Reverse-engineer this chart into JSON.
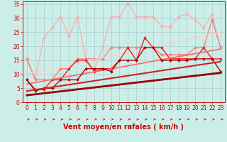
{
  "xlabel": "Vent moyen/en rafales ( km/h )",
  "bg_color": "#cceee8",
  "grid_color": "#aacccc",
  "xlim": [
    -0.5,
    23.5
  ],
  "ylim": [
    0,
    36
  ],
  "yticks": [
    0,
    5,
    10,
    15,
    20,
    25,
    30,
    35
  ],
  "xticks": [
    0,
    1,
    2,
    3,
    4,
    5,
    6,
    7,
    8,
    9,
    10,
    11,
    12,
    13,
    14,
    15,
    16,
    17,
    18,
    19,
    20,
    21,
    22,
    23
  ],
  "series": [
    {
      "x": [
        0,
        1,
        2,
        3,
        4,
        5,
        6,
        7,
        8,
        9,
        10,
        11,
        12,
        13,
        14,
        15,
        16,
        17,
        18,
        19,
        20,
        21,
        22,
        23
      ],
      "y": [
        8.0,
        4.0,
        5.0,
        5.0,
        8.0,
        8.0,
        8.0,
        12.0,
        12.0,
        12.0,
        11.0,
        15.0,
        15.0,
        15.0,
        19.5,
        19.5,
        15.0,
        15.0,
        15.0,
        15.0,
        15.5,
        15.5,
        15.5,
        11.0
      ],
      "color": "#bb0000",
      "lw": 1.0,
      "marker": "D",
      "ms": 2.0,
      "zorder": 5
    },
    {
      "x": [
        0,
        1,
        2,
        3,
        4,
        5,
        6,
        7,
        8,
        9,
        10,
        11,
        12,
        13,
        14,
        15,
        16,
        17,
        18,
        19,
        20,
        21,
        22,
        23
      ],
      "y": [
        8.0,
        4.5,
        4.5,
        8.0,
        8.0,
        12.0,
        15.0,
        15.0,
        11.0,
        12.0,
        12.0,
        15.0,
        19.5,
        15.0,
        23.0,
        19.5,
        19.5,
        15.5,
        15.5,
        15.5,
        15.5,
        19.5,
        15.5,
        15.5
      ],
      "color": "#ee2222",
      "lw": 1.0,
      "marker": "D",
      "ms": 2.0,
      "zorder": 4
    },
    {
      "x": [
        0,
        1,
        2,
        3,
        4,
        5,
        6,
        7,
        8,
        9,
        10,
        11,
        12,
        13,
        14,
        15,
        16,
        17,
        18,
        19,
        20,
        21,
        22,
        23
      ],
      "y": [
        15.5,
        8.0,
        8.0,
        8.0,
        12.0,
        12.0,
        15.5,
        15.5,
        15.5,
        15.5,
        19.5,
        19.5,
        19.5,
        19.5,
        19.5,
        19.5,
        17.0,
        17.0,
        17.0,
        17.0,
        19.5,
        19.5,
        29.5,
        19.5
      ],
      "color": "#ff7777",
      "lw": 0.9,
      "marker": "D",
      "ms": 2.0,
      "zorder": 3
    },
    {
      "x": [
        0,
        1,
        2,
        3,
        4,
        5,
        6,
        7,
        8,
        9,
        10,
        11,
        12,
        13,
        14,
        15,
        16,
        17,
        18,
        19,
        20,
        21,
        22,
        23
      ],
      "y": [
        15.5,
        8.5,
        23.0,
        26.5,
        30.5,
        23.5,
        30.5,
        15.5,
        11.5,
        19.5,
        30.5,
        30.5,
        35.5,
        30.5,
        30.5,
        30.5,
        27.0,
        27.0,
        30.5,
        31.5,
        29.5,
        26.5,
        31.5,
        19.5
      ],
      "color": "#ffaaaa",
      "lw": 0.9,
      "marker": "D",
      "ms": 2.0,
      "zorder": 2
    },
    {
      "x": [
        0,
        23
      ],
      "y": [
        2.5,
        10.5
      ],
      "color": "#990000",
      "lw": 2.0,
      "marker": null,
      "ms": 0,
      "zorder": 6
    },
    {
      "x": [
        0,
        23
      ],
      "y": [
        4.0,
        14.5
      ],
      "color": "#cc2222",
      "lw": 1.5,
      "marker": null,
      "ms": 0,
      "zorder": 5
    },
    {
      "x": [
        0,
        23
      ],
      "y": [
        6.5,
        19.0
      ],
      "color": "#ff6666",
      "lw": 1.2,
      "marker": null,
      "ms": 0,
      "zorder": 4
    },
    {
      "x": [
        0,
        23
      ],
      "y": [
        10.0,
        25.0
      ],
      "color": "#ffcccc",
      "lw": 1.0,
      "marker": null,
      "ms": 0,
      "zorder": 3
    }
  ],
  "arrow_color": "#cc0000",
  "xlabel_color": "#cc0000",
  "xlabel_fontsize": 7,
  "tick_color": "#cc0000",
  "tick_fontsize": 5.5,
  "ytick_fontsize": 5.5
}
